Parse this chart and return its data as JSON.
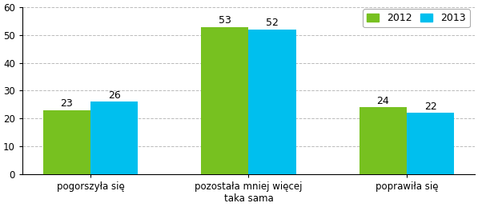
{
  "categories": [
    "pogorszyła się",
    "pozostała mniej więcej\ntaka sama",
    "poprawiła się"
  ],
  "values_2012": [
    23,
    53,
    24
  ],
  "values_2013": [
    26,
    52,
    22
  ],
  "color_2012": "#77C120",
  "color_2013": "#00BFEE",
  "legend_labels": [
    "2012",
    "2013"
  ],
  "ylim": [
    0,
    60
  ],
  "yticks": [
    0,
    10,
    20,
    30,
    40,
    50,
    60
  ],
  "bar_width": 0.3,
  "label_fontsize": 9,
  "tick_fontsize": 8.5,
  "legend_fontsize": 9,
  "background_color": "#ffffff",
  "grid_color": "#bbbbbb"
}
